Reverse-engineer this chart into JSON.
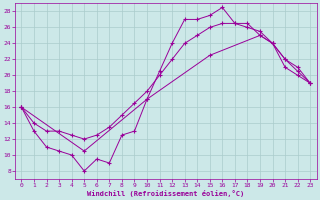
{
  "xlabel": "Windchill (Refroidissement éolien,°C)",
  "bg_color": "#cce8e8",
  "line_color": "#990099",
  "grid_color": "#aacccc",
  "ylim": [
    7,
    29
  ],
  "xlim": [
    -0.5,
    23.5
  ],
  "yticks": [
    8,
    10,
    12,
    14,
    16,
    18,
    20,
    22,
    24,
    26,
    28
  ],
  "xticks": [
    0,
    1,
    2,
    3,
    4,
    5,
    6,
    7,
    8,
    9,
    10,
    11,
    12,
    13,
    14,
    15,
    16,
    17,
    18,
    19,
    20,
    21,
    22,
    23
  ],
  "curve1_x": [
    0,
    1,
    2,
    3,
    4,
    5,
    6,
    7,
    8,
    9,
    10,
    11,
    12,
    13,
    14,
    15,
    16,
    17,
    18,
    19,
    20,
    21,
    22,
    23
  ],
  "curve1_y": [
    16,
    13,
    11,
    10.5,
    10,
    8,
    9.5,
    9,
    12.5,
    13,
    17,
    20.5,
    24,
    27,
    27,
    27.5,
    28.5,
    26.5,
    26.5,
    25,
    24,
    21,
    20,
    19
  ],
  "curve2_x": [
    0,
    1,
    2,
    3,
    4,
    5,
    6,
    7,
    8,
    9,
    10,
    11,
    12,
    13,
    14,
    15,
    16,
    17,
    18,
    19,
    20,
    21,
    22,
    23
  ],
  "curve2_y": [
    16,
    14,
    13,
    13,
    12.5,
    12,
    12.5,
    13.5,
    15,
    16.5,
    18,
    20,
    22,
    24,
    25,
    26,
    26.5,
    26.5,
    26,
    25.5,
    24,
    22,
    20.5,
    19
  ],
  "curve3_x": [
    0,
    5,
    10,
    15,
    19,
    20,
    21,
    22,
    23
  ],
  "curve3_y": [
    16,
    10.5,
    17,
    22.5,
    25,
    24,
    22,
    21,
    19
  ]
}
